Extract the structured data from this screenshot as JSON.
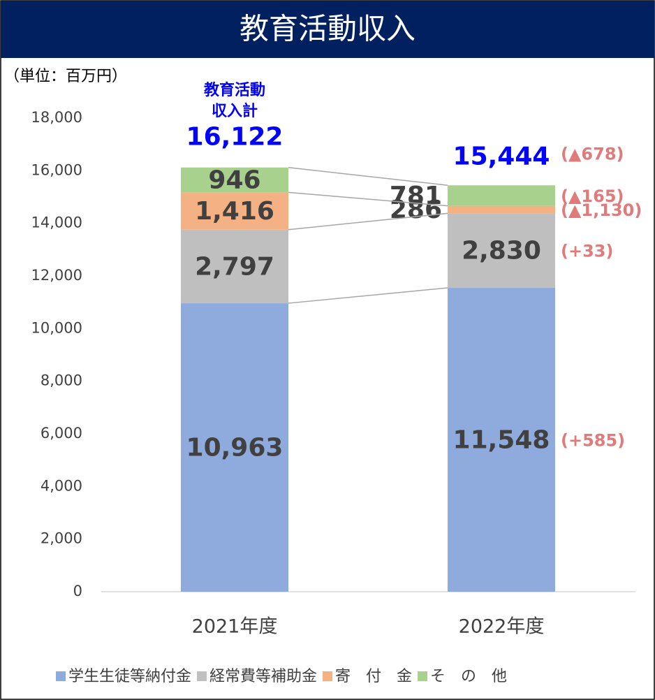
{
  "chart_data": {
    "type": "stacked_bar",
    "title": "教育活動収入",
    "unit_label": "（単位：百万円）",
    "categories": [
      "2021年度",
      "2022年度"
    ],
    "ylim": [
      0,
      18000
    ],
    "yticks": [
      0,
      {
        "value": 2000,
        "label": "2,000"
      },
      {
        "value": 4000,
        "label": "4,000"
      },
      {
        "value": 6000,
        "label": "6,000"
      },
      {
        "value": 8000,
        "label": "8,000"
      },
      {
        "value": 10000,
        "label": "10,000"
      },
      {
        "value": 12000,
        "label": "12,000"
      },
      {
        "value": 14000,
        "label": "14,000"
      },
      {
        "value": 16000,
        "label": "16,000"
      },
      {
        "value": 18000,
        "label": "18,000"
      }
    ],
    "series": [
      {
        "name": "学生生徒等納付金",
        "color": "#8faadc",
        "values": [
          10963,
          11548
        ],
        "value_labels": [
          "10,963",
          "11,548"
        ],
        "change_label": "(+585)"
      },
      {
        "name": "経常費等補助金",
        "color": "#bfbfbf",
        "values": [
          2797,
          2830
        ],
        "value_labels": [
          "2,797",
          "2,830"
        ],
        "change_label": "(+33)"
      },
      {
        "name": "寄　付　金",
        "color": "#f4b183",
        "values": [
          1416,
          286
        ],
        "value_labels": [
          "1,416",
          "286"
        ],
        "change_label": "(▲1,130)"
      },
      {
        "name": "そ　の　他",
        "color": "#a9d18e",
        "values": [
          946,
          781
        ],
        "value_labels": [
          "946",
          "781"
        ],
        "change_label": "(▲165)"
      }
    ],
    "total_label": [
      "教育活動",
      "収入計"
    ],
    "totals": [
      16122,
      15444
    ],
    "total_value_labels": [
      "16,122",
      "15,444"
    ],
    "total_change_label": "(▲678)"
  }
}
